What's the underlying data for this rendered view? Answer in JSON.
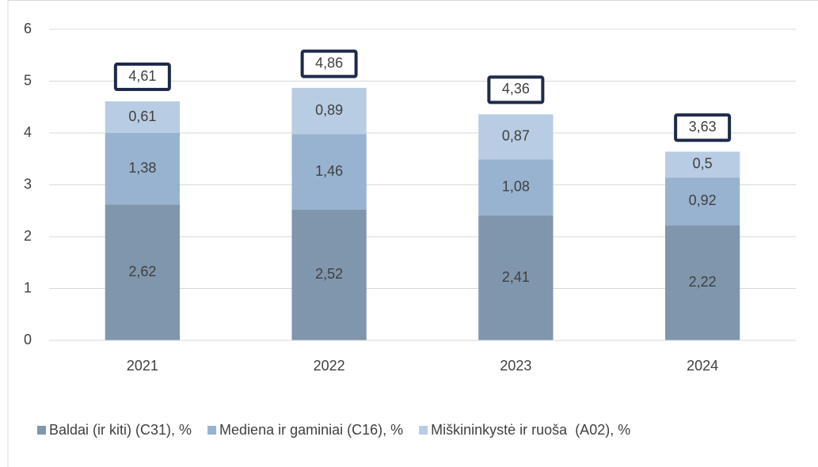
{
  "chart_data": {
    "type": "stacked_bar",
    "categories": [
      "2021",
      "2022",
      "2023",
      "2024"
    ],
    "series": [
      {
        "name": "Baldai (ir kiti) (C31), %",
        "color": "#7f96ad",
        "values": [
          2.62,
          2.52,
          2.41,
          2.22
        ],
        "value_labels": [
          "2,62",
          "2,52",
          "2,41",
          "2,22"
        ]
      },
      {
        "name": "Mediena ir gaminiai (C16), %",
        "color": "#98b3cf",
        "values": [
          1.38,
          1.46,
          1.08,
          0.92
        ],
        "value_labels": [
          "1,38",
          "1,46",
          "1,08",
          "0,92"
        ]
      },
      {
        "name": "Miškininkystė ir ruoša  (A02), %",
        "color": "#b8cce3",
        "values": [
          0.61,
          0.89,
          0.87,
          0.5
        ],
        "value_labels": [
          "0,61",
          "0,89",
          "0,87",
          "0,5"
        ]
      }
    ],
    "totals": {
      "values": [
        4.61,
        4.86,
        4.36,
        3.63
      ],
      "value_labels": [
        "4,61",
        "4,86",
        "4,36",
        "3,63"
      ]
    },
    "ylim": [
      0,
      6
    ],
    "yticks": [
      0,
      1,
      2,
      3,
      4,
      5,
      6
    ],
    "grid": true,
    "legend": "bottom"
  }
}
